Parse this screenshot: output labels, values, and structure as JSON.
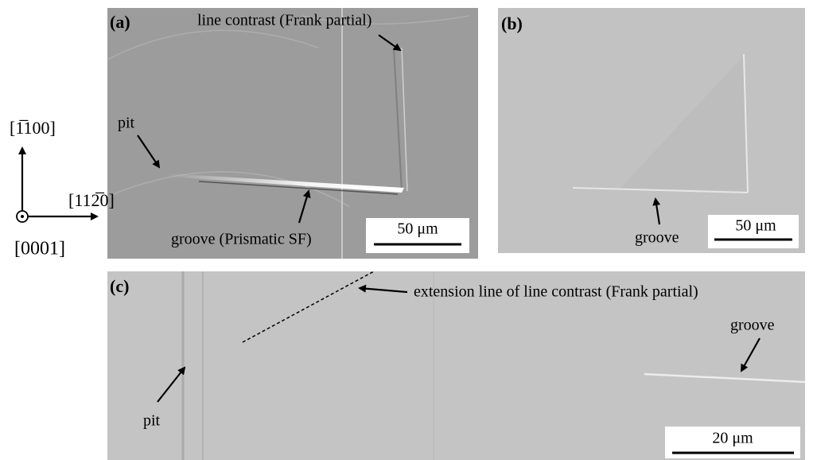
{
  "orientation": {
    "vertical": "[1̅100]",
    "horizontal": "[112̅0]",
    "normal": "[0001]"
  },
  "panels": [
    {
      "label": "(a)",
      "annotations": [
        "line contrast (Frank partial)",
        "pit",
        "groove (Prismatic SF)"
      ],
      "scale_bar": "50 μm"
    },
    {
      "label": "(b)",
      "annotations": [
        "groove"
      ],
      "scale_bar": "50 μm"
    },
    {
      "label": "(c)",
      "annotations": [
        "extension line of line contrast (Frank partial)",
        "groove",
        "pit"
      ],
      "scale_bar": "20 μm"
    }
  ]
}
